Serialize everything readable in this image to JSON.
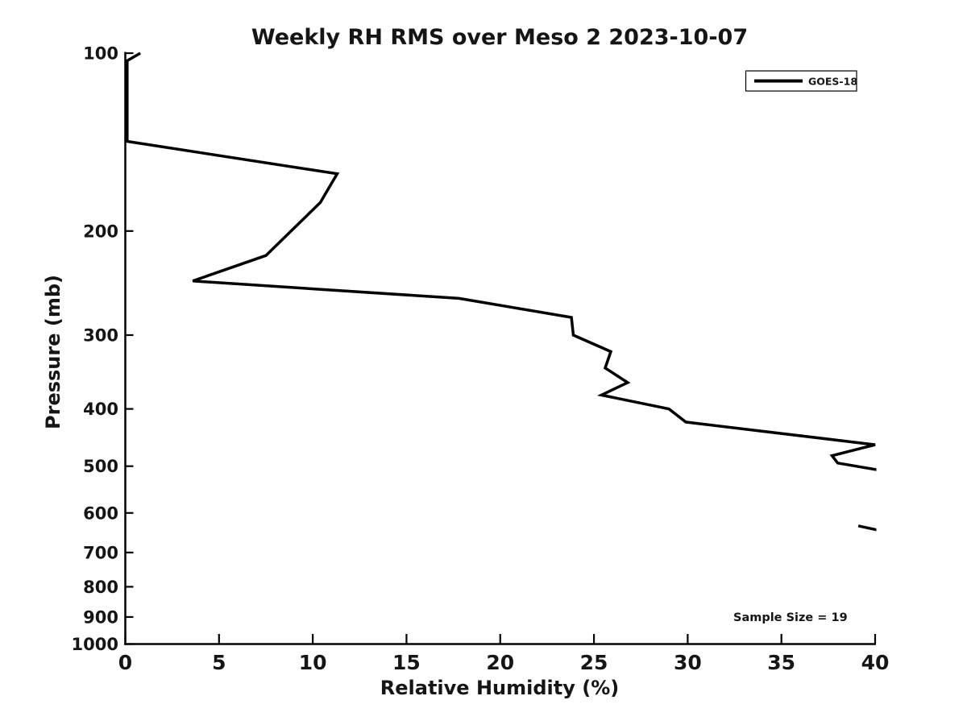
{
  "colors": {
    "background": "#ffffff",
    "line": "#000000",
    "text": "#151515",
    "axis": "#000000"
  },
  "chart_data": {
    "type": "line",
    "title": "Weekly RH RMS over Meso 2 2023-10-07",
    "xlabel": "Relative Humidity (%)",
    "ylabel": "Pressure (mb)",
    "xlim": [
      0,
      40
    ],
    "ylim_pressure_mb": [
      1000,
      100
    ],
    "yscale": "log",
    "grid": false,
    "xticks": [
      0,
      5,
      10,
      15,
      20,
      25,
      30,
      35,
      40
    ],
    "yticks": [
      100,
      200,
      300,
      400,
      500,
      600,
      700,
      800,
      900,
      1000
    ],
    "legend": {
      "label": "GOES-18",
      "position": "upper-right",
      "line_color": "#000000"
    },
    "annotation": "Sample Size = 19",
    "series": [
      {
        "name": "GOES-18",
        "color": "#000000",
        "points_rh_pressure": [
          [
            0.8,
            100
          ],
          [
            0.1,
            103
          ],
          [
            0.1,
            141
          ],
          [
            11.3,
            160
          ],
          [
            10.4,
            179
          ],
          [
            8.7,
            202
          ],
          [
            7.5,
            220
          ],
          [
            3.6,
            243
          ],
          [
            17.8,
            260
          ],
          [
            23.8,
            280
          ],
          [
            23.9,
            300
          ],
          [
            25.9,
            320
          ],
          [
            25.6,
            341
          ],
          [
            26.8,
            361
          ],
          [
            25.4,
            379
          ],
          [
            29.0,
            400
          ],
          [
            29.9,
            421
          ],
          [
            40.0,
            460
          ],
          [
            37.7,
            480
          ],
          [
            38.0,
            494
          ],
          [
            40.1,
            507
          ],
          null,
          [
            39.1,
            631
          ],
          [
            40.1,
            641
          ]
        ]
      }
    ]
  }
}
